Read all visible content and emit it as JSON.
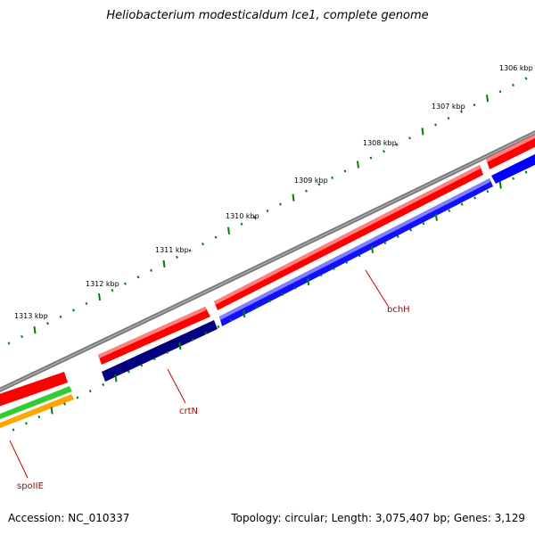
{
  "title": "Heliobacterium modesticaldum Ice1, complete genome",
  "footer": {
    "accession": "Accession: NC_010337",
    "topology": "Topology: circular; Length: 3,075,407 bp; Genes: 3,129"
  },
  "ruler": {
    "labels": [
      "1306 kbp",
      "1307 kbp",
      "1308 kbp",
      "1309 kbp",
      "1310 kbp",
      "1311 kbp",
      "1312 kbp",
      "1313 kbp"
    ]
  },
  "genes": [
    {
      "name": "bchH",
      "strand": "-",
      "color": "#1010ff"
    },
    {
      "name": "crtN",
      "strand": "-",
      "color": "#000080"
    },
    {
      "name": "spoIIE",
      "strand": "-",
      "color": "#ffa500"
    }
  ],
  "colors": {
    "backbone": "#808080",
    "cds_forward": "#ff0000",
    "cds_reverse": "#0000ff",
    "cds_reverse_dark": "#000080",
    "green_track": "#33cc33",
    "orange_track": "#ffa500",
    "tick": "#008000",
    "gene_label": "#aa0000"
  }
}
